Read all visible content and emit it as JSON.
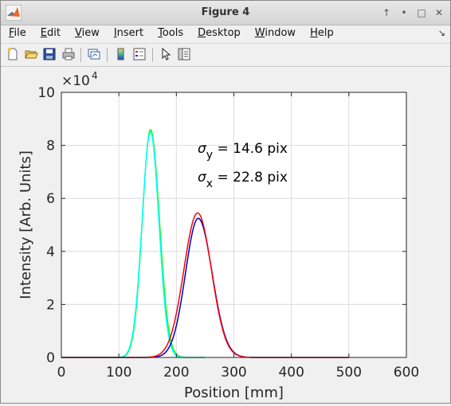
{
  "window": {
    "title": "Figure 4"
  },
  "menu": {
    "items": [
      {
        "label": "File",
        "u": "F",
        "rest": "ile"
      },
      {
        "label": "Edit",
        "u": "E",
        "rest": "dit"
      },
      {
        "label": "View",
        "u": "V",
        "rest": "iew"
      },
      {
        "label": "Insert",
        "u": "I",
        "rest": "nsert"
      },
      {
        "label": "Tools",
        "u": "T",
        "rest": "ools"
      },
      {
        "label": "Desktop",
        "u": "D",
        "rest": "esktop"
      },
      {
        "label": "Window",
        "u": "W",
        "rest": "indow"
      },
      {
        "label": "Help",
        "u": "H",
        "rest": "elp"
      }
    ]
  },
  "toolbar": {
    "buttons": [
      "new-figure-icon",
      "open-file-icon",
      "save-icon",
      "print-icon",
      "link-plot-icon",
      "insert-colorbar-icon",
      "insert-legend-icon",
      "select-cursor-icon",
      "property-inspector-icon"
    ]
  },
  "chart_data": {
    "type": "line",
    "xlabel": "Position [mm]",
    "ylabel": "Intensity [Arb. Units]",
    "xlim": [
      0,
      600
    ],
    "ylim": [
      0,
      100000
    ],
    "x_ticks": [
      0,
      100,
      200,
      300,
      400,
      500,
      600
    ],
    "y_ticks": [
      0,
      2,
      4,
      6,
      8,
      10
    ],
    "y_exponent_label": "×10",
    "y_exponent_power": "4",
    "grid": true,
    "annotations": [
      {
        "sym": "σ",
        "sub": "y",
        "text": " = 14.6 pix"
      },
      {
        "sym": "σ",
        "sub": "x",
        "text": " = 22.8 pix"
      }
    ],
    "series": [
      {
        "color": "#00ff00",
        "kind": "gauss",
        "center": 155,
        "sigma": 14.6,
        "amp": 86000,
        "xmin": 0,
        "xmax": 250,
        "mode": "data"
      },
      {
        "color": "#00ffff",
        "kind": "gauss",
        "center": 155,
        "sigma": 14.6,
        "amp": 85000,
        "xmin": 0,
        "xmax": 250,
        "mode": "fit"
      },
      {
        "color": "#0000c8",
        "kind": "gauss",
        "center": 238,
        "sigma": 22.8,
        "amp": 52500,
        "xmin": 0,
        "xmax": 500,
        "mode": "data"
      },
      {
        "color": "#ff0000",
        "kind": "gauss",
        "center": 237,
        "sigma": 24.0,
        "amp": 54500,
        "xmin": 0,
        "xmax": 500,
        "mode": "fit"
      }
    ]
  }
}
